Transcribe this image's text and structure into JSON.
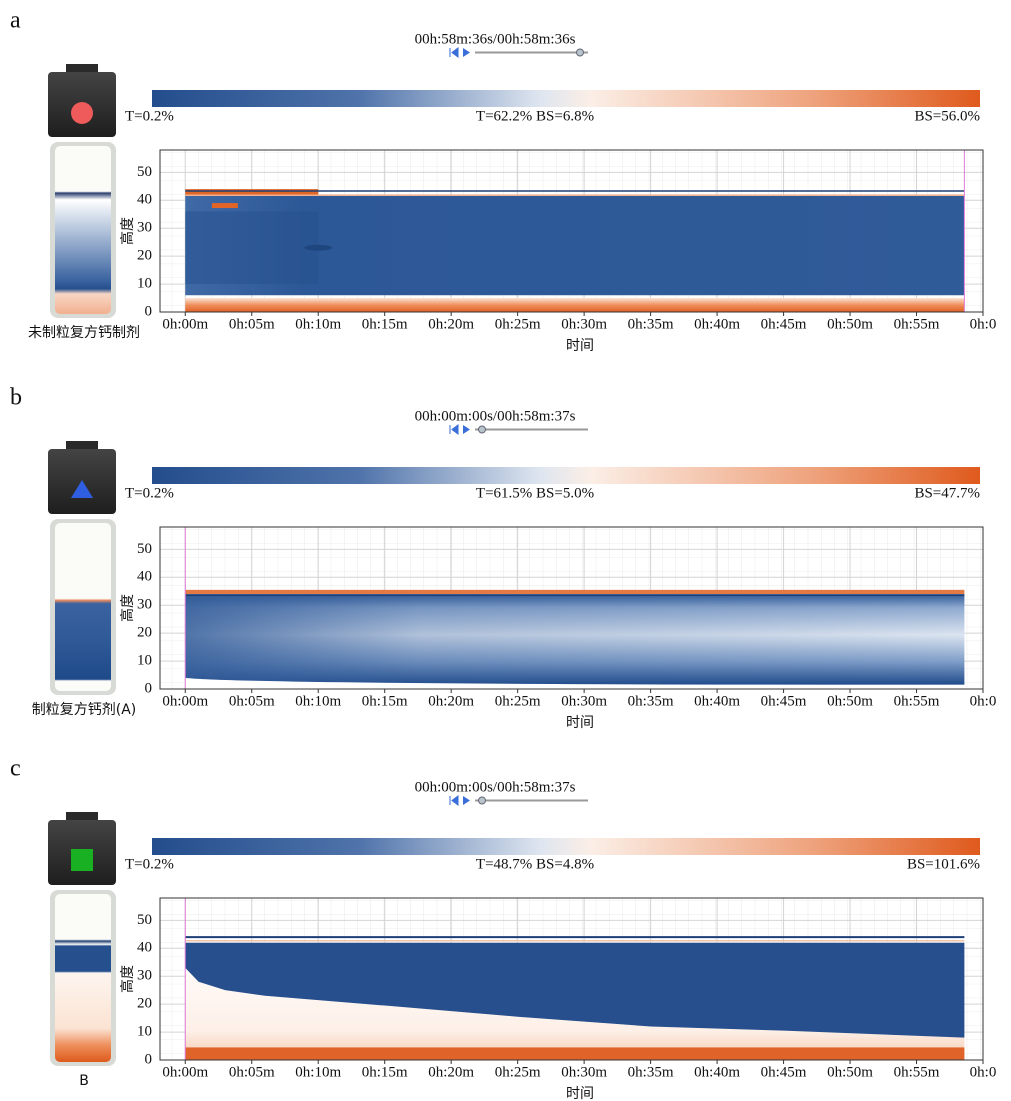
{
  "panels": [
    {
      "label": "a",
      "time": "00h:58m:36s/00h:58m:36s",
      "colorbar": {
        "left": "T=0.2%",
        "middle": "T=62.2% BS=6.8%",
        "right": "BS=56.0%"
      },
      "sample": "未制粒复方钙制剂",
      "y_label": "高度",
      "x_label": "时间",
      "ylim": [
        0,
        58
      ],
      "yticks": [
        0,
        10,
        20,
        30,
        40,
        50
      ],
      "xlim": [
        -1.9,
        60
      ],
      "xticks": [
        {
          "value": 0,
          "label": "0h:00m"
        },
        {
          "value": 5,
          "label": "0h:05m"
        },
        {
          "value": 10,
          "label": "0h:10m"
        },
        {
          "value": 15,
          "label": "0h:15m"
        },
        {
          "value": 20,
          "label": "0h:20m"
        },
        {
          "value": 25,
          "label": "0h:25m"
        },
        {
          "value": 30,
          "label": "0h:30m"
        },
        {
          "value": 35,
          "label": "0h:35m"
        },
        {
          "value": 40,
          "label": "0h:40m"
        },
        {
          "value": 45,
          "label": "0h:45m"
        },
        {
          "value": 50,
          "label": "0h:50m"
        },
        {
          "value": 55,
          "label": "0h:55m"
        },
        {
          "value": 60,
          "label": "0h:0"
        }
      ]
    },
    {
      "label": "b",
      "time": "00h:00m:00s/00h:58m:37s",
      "colorbar": {
        "left": "T=0.2%",
        "middle": "T=61.5% BS=5.0%",
        "right": "BS=47.7%"
      },
      "sample": "制粒复方钙剂(A)",
      "y_label": "高度",
      "x_label": "时间",
      "ylim": [
        0,
        58
      ],
      "yticks": [
        0,
        10,
        20,
        30,
        40,
        50
      ],
      "xlim": [
        -1.9,
        60
      ],
      "xticks": [
        {
          "value": 0,
          "label": "0h:00m"
        },
        {
          "value": 5,
          "label": "0h:05m"
        },
        {
          "value": 10,
          "label": "0h:10m"
        },
        {
          "value": 15,
          "label": "0h:15m"
        },
        {
          "value": 20,
          "label": "0h:20m"
        },
        {
          "value": 25,
          "label": "0h:25m"
        },
        {
          "value": 30,
          "label": "0h:30m"
        },
        {
          "value": 35,
          "label": "0h:35m"
        },
        {
          "value": 40,
          "label": "0h:40m"
        },
        {
          "value": 45,
          "label": "0h:45m"
        },
        {
          "value": 50,
          "label": "0h:50m"
        },
        {
          "value": 55,
          "label": "0h:55m"
        },
        {
          "value": 60,
          "label": "0h:0"
        }
      ]
    },
    {
      "label": "c",
      "time": "00h:00m:00s/00h:58m:37s",
      "colorbar": {
        "left": "T=0.2%",
        "middle": "T=48.7% BS=4.8%",
        "right": "BS=101.6%"
      },
      "sample": "B",
      "y_label": "高度",
      "x_label": "时间",
      "ylim": [
        0,
        58
      ],
      "yticks": [
        0,
        10,
        20,
        30,
        40,
        50
      ],
      "xlim": [
        -1.9,
        60
      ],
      "xticks": [
        {
          "value": 0,
          "label": "0h:00m"
        },
        {
          "value": 5,
          "label": "0h:05m"
        },
        {
          "value": 10,
          "label": "0h:10m"
        },
        {
          "value": 15,
          "label": "0h:15m"
        },
        {
          "value": 20,
          "label": "0h:20m"
        },
        {
          "value": 25,
          "label": "0h:25m"
        },
        {
          "value": 30,
          "label": "0h:30m"
        },
        {
          "value": 35,
          "label": "0h:35m"
        },
        {
          "value": 40,
          "label": "0h:40m"
        },
        {
          "value": 45,
          "label": "0h:45m"
        },
        {
          "value": 50,
          "label": "0h:50m"
        },
        {
          "value": 55,
          "label": "0h:55m"
        },
        {
          "value": 60,
          "label": "0h:0"
        }
      ]
    }
  ]
}
